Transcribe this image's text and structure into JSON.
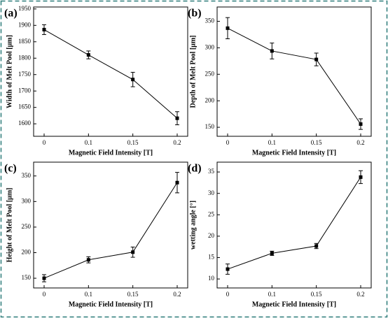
{
  "chart_data": [
    {
      "type": "line",
      "label": "(a)",
      "x_label": "Magnetic Field Intensity [T]",
      "y_label": "Width of Melt Pool [μm]",
      "categories": [
        "0",
        "0.1",
        "0.15",
        "0.2"
      ],
      "values": [
        1887,
        1810,
        1735,
        1617
      ],
      "errors": [
        15,
        12,
        22,
        20
      ],
      "color": "#000000",
      "ylim": [
        1562,
        1956
      ],
      "yticks": [
        1600,
        1650,
        1700,
        1750,
        1800,
        1850,
        1900,
        1950
      ]
    },
    {
      "type": "line",
      "label": "(b)",
      "x_label": "Magnetic Field Intensity [T]",
      "y_label": "Depth of Melt Pool [μm]",
      "categories": [
        "0",
        "0.1",
        "0.15",
        "0.2"
      ],
      "values": [
        337,
        294,
        278,
        156
      ],
      "errors": [
        20,
        15,
        12,
        10
      ],
      "color": "#000000",
      "ylim": [
        133,
        377
      ],
      "yticks": [
        150,
        200,
        250,
        300,
        350
      ]
    },
    {
      "type": "line",
      "label": "(c)",
      "x_label": "Magnetic Field Intensity [T]",
      "y_label": "Height of Melt Pool [μm]",
      "categories": [
        "0",
        "0.1",
        "0.15",
        "0.2"
      ],
      "values": [
        150,
        186,
        201,
        337
      ],
      "errors": [
        7,
        6,
        10,
        20
      ],
      "color": "#000000",
      "ylim": [
        131,
        377
      ],
      "yticks": [
        150,
        200,
        250,
        300,
        350
      ]
    },
    {
      "type": "line",
      "label": "(d)",
      "x_label": "Magnetic Field Intensity [T]",
      "y_label": "wetting angle [°]",
      "categories": [
        "0",
        "0.1",
        "0.15",
        "0.2"
      ],
      "values": [
        12.3,
        16,
        17.7,
        33.8
      ],
      "errors": [
        1.2,
        0.5,
        0.6,
        1.5
      ],
      "color": "#000000",
      "ylim": [
        7.9,
        37.3
      ],
      "yticks": [
        10,
        15,
        20,
        25,
        30,
        35
      ]
    }
  ]
}
